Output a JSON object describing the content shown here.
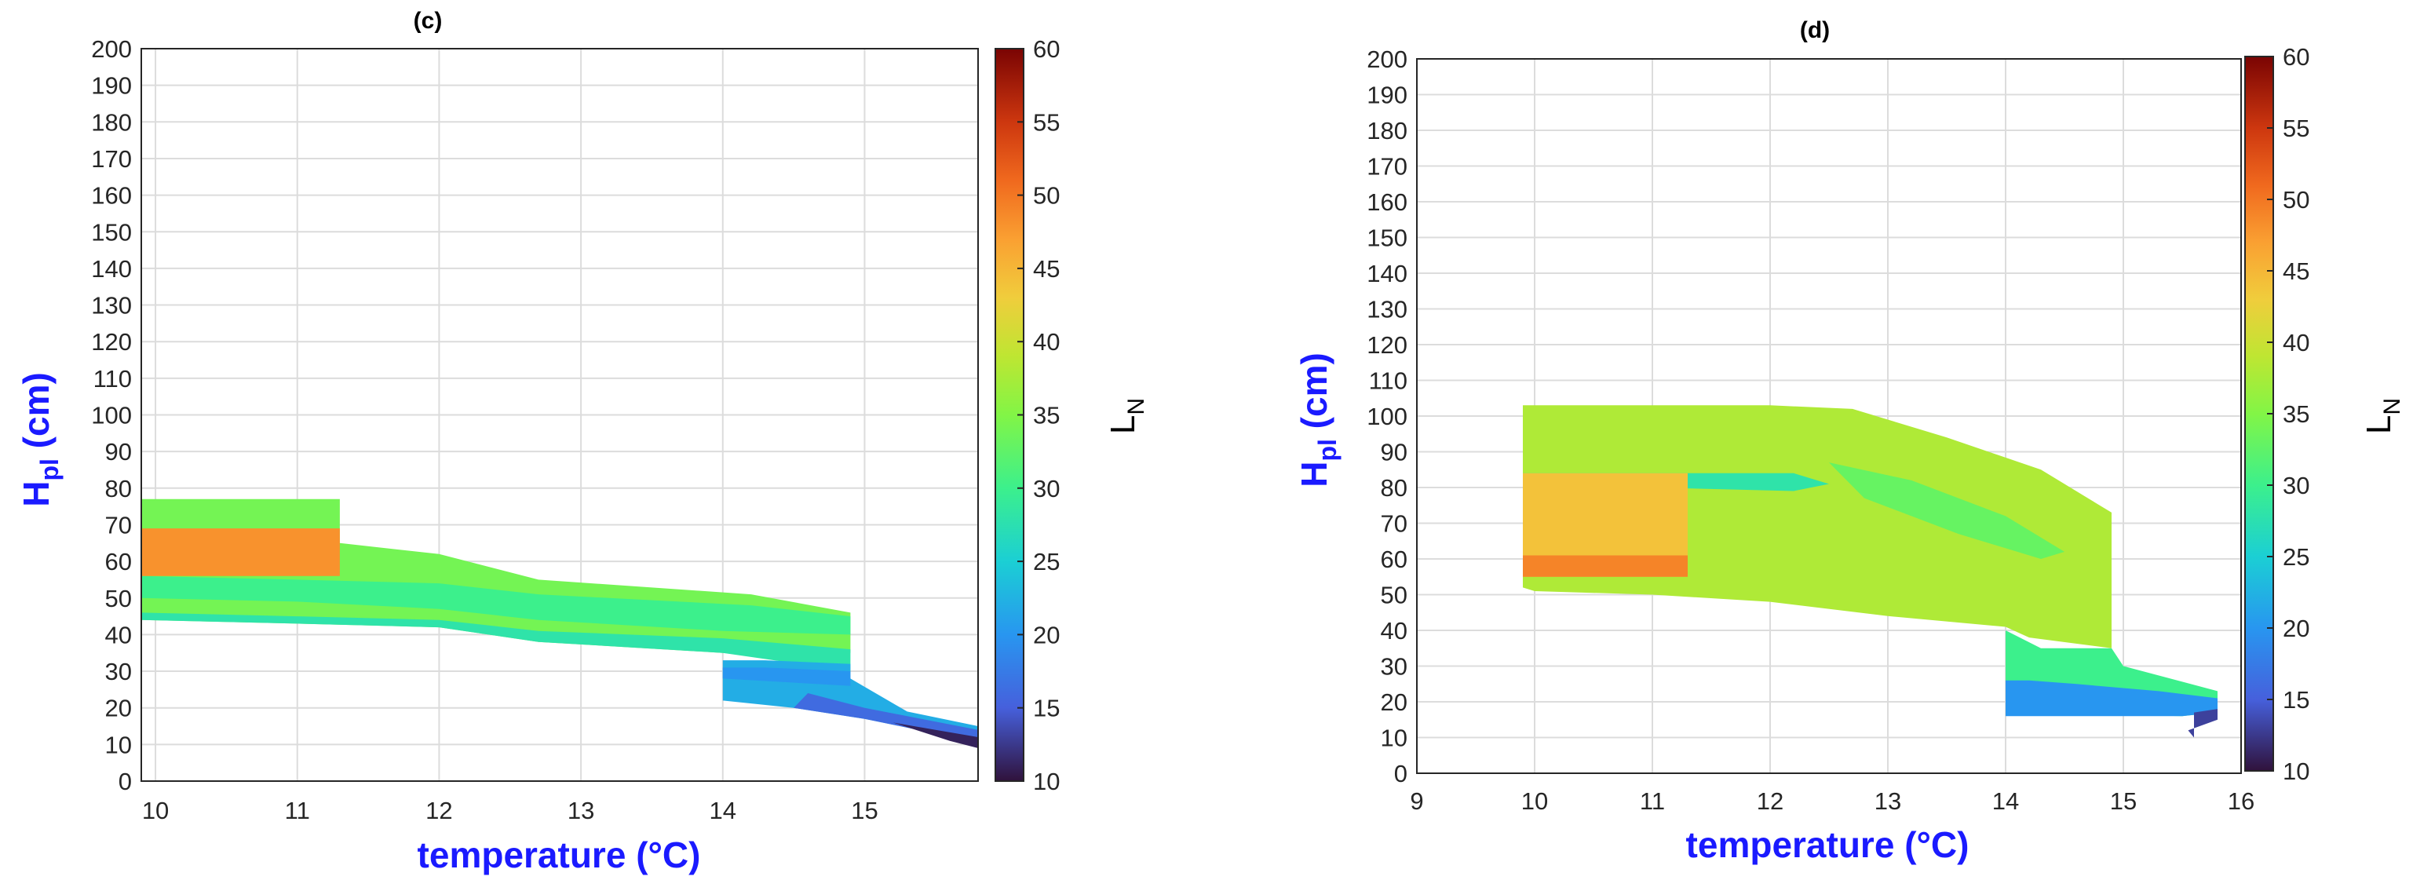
{
  "chart_data": [
    {
      "panel_title": "(c)",
      "type": "heatmap",
      "xlabel": "temperature (°C)",
      "ylabel_main": "H",
      "ylabel_sub": "pl",
      "ylabel_rest": " (cm)",
      "xlim": [
        9.9,
        15.8
      ],
      "ylim": [
        0,
        200
      ],
      "xticks": [
        10,
        11,
        12,
        13,
        14,
        15
      ],
      "yticks": [
        0,
        10,
        20,
        30,
        40,
        50,
        60,
        70,
        80,
        90,
        100,
        110,
        120,
        130,
        140,
        150,
        160,
        170,
        180,
        190,
        200
      ],
      "grid": true,
      "colorbar": {
        "label_main": "L",
        "label_sub": "N",
        "range": [
          10,
          60
        ],
        "ticks": [
          10,
          15,
          20,
          25,
          30,
          35,
          40,
          45,
          50,
          55,
          60
        ]
      },
      "regions": [
        {
          "lnValue": 34,
          "polygon": [
            [
              9.9,
              44
            ],
            [
              11,
              43
            ],
            [
              12,
              42
            ],
            [
              12.7,
              38
            ],
            [
              14,
              35
            ],
            [
              14.9,
              35
            ],
            [
              14.9,
              46
            ],
            [
              14.2,
              51
            ],
            [
              12.7,
              55
            ],
            [
              12,
              62
            ],
            [
              11.3,
              65
            ],
            [
              11.3,
              77
            ],
            [
              9.9,
              77
            ]
          ]
        },
        {
          "lnValue": 30,
          "polygon": [
            [
              9.9,
              50
            ],
            [
              11,
              49
            ],
            [
              12,
              47
            ],
            [
              12.7,
              44
            ],
            [
              14,
              41
            ],
            [
              14.9,
              40
            ],
            [
              14.9,
              45
            ],
            [
              14.2,
              48
            ],
            [
              12.7,
              51
            ],
            [
              12,
              54
            ],
            [
              11,
              55
            ],
            [
              9.9,
              56
            ]
          ]
        },
        {
          "lnValue": 28,
          "polygon": [
            [
              9.9,
              44
            ],
            [
              11,
              43
            ],
            [
              12,
              42
            ],
            [
              12.7,
              38
            ],
            [
              14,
              35
            ],
            [
              14.9,
              30
            ],
            [
              14.9,
              36
            ],
            [
              14,
              39
            ],
            [
              12.7,
              41
            ],
            [
              12,
              44
            ],
            [
              11,
              45
            ],
            [
              9.9,
              46
            ]
          ]
        },
        {
          "lnValue": 48,
          "polygon": [
            [
              9.9,
              56
            ],
            [
              11.3,
              56
            ],
            [
              11.3,
              69
            ],
            [
              9.9,
              69
            ]
          ]
        },
        {
          "lnValue": 22,
          "polygon": [
            [
              14,
              22
            ],
            [
              14.5,
              20
            ],
            [
              15,
              17
            ],
            [
              15.5,
              13
            ],
            [
              15.8,
              11
            ],
            [
              15.8,
              15
            ],
            [
              15.3,
              19
            ],
            [
              14.9,
              28
            ],
            [
              14.9,
              32
            ],
            [
              14.3,
              33
            ],
            [
              14,
              33
            ]
          ]
        },
        {
          "lnValue": 16,
          "polygon": [
            [
              14.5,
              20
            ],
            [
              15,
              17
            ],
            [
              15.5,
              13
            ],
            [
              15.8,
              10
            ],
            [
              15.8,
              14
            ],
            [
              15.4,
              17
            ],
            [
              15,
              20
            ],
            [
              14.6,
              24
            ]
          ]
        },
        {
          "lnValue": 11,
          "polygon": [
            [
              15.2,
              16
            ],
            [
              15.6,
              11
            ],
            [
              15.8,
              9
            ],
            [
              15.8,
              12
            ],
            [
              15.5,
              14
            ]
          ]
        },
        {
          "lnValue": 20,
          "polygon": [
            [
              14,
              28
            ],
            [
              14.9,
              26
            ],
            [
              14.9,
              30
            ],
            [
              14.3,
              31
            ],
            [
              14,
              31
            ]
          ]
        }
      ]
    },
    {
      "panel_title": "(d)",
      "type": "heatmap",
      "xlabel": "temperature (°C)",
      "ylabel_main": "H",
      "ylabel_sub": "pl",
      "ylabel_rest": " (cm)",
      "xlim": [
        9,
        16
      ],
      "ylim": [
        0,
        200
      ],
      "xticks": [
        9,
        10,
        11,
        12,
        13,
        14,
        15,
        16
      ],
      "yticks": [
        0,
        10,
        20,
        30,
        40,
        50,
        60,
        70,
        80,
        90,
        100,
        110,
        120,
        130,
        140,
        150,
        160,
        170,
        180,
        190,
        200
      ],
      "grid": true,
      "colorbar": {
        "label_main": "L",
        "label_sub": "N",
        "range": [
          10,
          60
        ],
        "ticks": [
          10,
          15,
          20,
          25,
          30,
          35,
          40,
          45,
          50,
          55,
          60
        ]
      },
      "regions": [
        {
          "lnValue": 38,
          "polygon": [
            [
              9.9,
              103
            ],
            [
              12,
              103
            ],
            [
              12.7,
              102
            ],
            [
              13.5,
              94
            ],
            [
              14.3,
              85
            ],
            [
              14.9,
              73
            ],
            [
              14.9,
              35
            ],
            [
              14.2,
              38
            ],
            [
              14,
              41
            ],
            [
              13,
              44
            ],
            [
              12,
              48
            ],
            [
              11,
              50
            ],
            [
              10,
              51
            ],
            [
              9.9,
              52
            ]
          ]
        },
        {
          "lnValue": 28,
          "polygon": [
            [
              9.9,
              84
            ],
            [
              12.2,
              84
            ],
            [
              12.5,
              81
            ],
            [
              12.2,
              79
            ],
            [
              11,
              80
            ],
            [
              9.9,
              81
            ]
          ]
        },
        {
          "lnValue": 33,
          "polygon": [
            [
              12.5,
              87
            ],
            [
              13.2,
              82
            ],
            [
              14,
              72
            ],
            [
              14.5,
              62
            ],
            [
              14.3,
              60
            ],
            [
              13.6,
              67
            ],
            [
              12.8,
              77
            ]
          ]
        },
        {
          "lnValue": 44,
          "polygon": [
            [
              9.9,
              55
            ],
            [
              11.3,
              55
            ],
            [
              11.3,
              84
            ],
            [
              9.9,
              84
            ]
          ]
        },
        {
          "lnValue": 49,
          "polygon": [
            [
              9.9,
              55
            ],
            [
              11.3,
              55
            ],
            [
              11.3,
              61
            ],
            [
              9.9,
              61
            ]
          ]
        },
        {
          "lnValue": 30,
          "polygon": [
            [
              14,
              17
            ],
            [
              15.5,
              16
            ],
            [
              15.8,
              17
            ],
            [
              15.8,
              23
            ],
            [
              15,
              30
            ],
            [
              14.9,
              35
            ],
            [
              14.3,
              35
            ],
            [
              14,
              40
            ]
          ]
        },
        {
          "lnValue": 20,
          "polygon": [
            [
              14,
              16
            ],
            [
              15.5,
              16
            ],
            [
              15.8,
              17
            ],
            [
              15.8,
              21
            ],
            [
              15.3,
              23
            ],
            [
              14.6,
              25
            ],
            [
              14.2,
              26
            ],
            [
              14,
              26
            ]
          ]
        },
        {
          "lnValue": 13,
          "polygon": [
            [
              15.55,
              12
            ],
            [
              15.8,
              15
            ],
            [
              15.8,
              18
            ],
            [
              15.6,
              17
            ],
            [
              15.6,
              10
            ]
          ]
        }
      ]
    }
  ]
}
